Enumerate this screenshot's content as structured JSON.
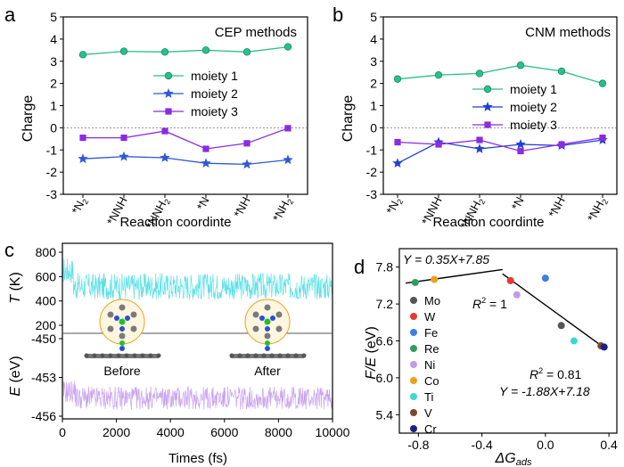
{
  "chart_data": [
    {
      "panel": "a",
      "type": "line",
      "title": "CEP methods",
      "xlabel": "Reaction coordinte",
      "ylabel": "Charge",
      "ylim": [
        -3,
        5
      ],
      "yticks": [
        "5",
        "4",
        "3",
        "2",
        "1",
        "0",
        "-1",
        "-2",
        "-3"
      ],
      "categories": [
        "*N2",
        "*NNH",
        "*NNH2",
        "*N",
        "*NH",
        "*NH2"
      ],
      "category_labels": [
        {
          "base": "*N",
          "sub": "2"
        },
        {
          "base": "*NNH",
          "sub": ""
        },
        {
          "base": "*NNH",
          "sub": "2"
        },
        {
          "base": "*N",
          "sub": ""
        },
        {
          "base": "*NH",
          "sub": ""
        },
        {
          "base": "*NH",
          "sub": "2"
        }
      ],
      "legend_position": "center-right",
      "series": [
        {
          "name": "moiety 1",
          "color": "#2bbf8a",
          "marker": "circle",
          "values": [
            3.3,
            3.45,
            3.42,
            3.5,
            3.42,
            3.65
          ]
        },
        {
          "name": "moiety 2",
          "color": "#2f59d6",
          "marker": "star",
          "values": [
            -1.4,
            -1.3,
            -1.35,
            -1.6,
            -1.65,
            -1.45
          ]
        },
        {
          "name": "moiety 3",
          "color": "#8a2be2",
          "marker": "square",
          "values": [
            -0.45,
            -0.45,
            -0.15,
            -0.95,
            -0.7,
            -0.02
          ]
        }
      ]
    },
    {
      "panel": "b",
      "type": "line",
      "title": "CNM methods",
      "xlabel": "Reaction coordinte",
      "ylabel": "Charge",
      "ylim": [
        -3,
        5
      ],
      "yticks": [
        "5",
        "4",
        "3",
        "2",
        "1",
        "0",
        "-1",
        "-2",
        "-3"
      ],
      "categories": [
        "*N2",
        "*NNH",
        "*NNH2",
        "*N",
        "*NH",
        "*NH2"
      ],
      "category_labels": [
        {
          "base": "*N",
          "sub": "2"
        },
        {
          "base": "*NNH",
          "sub": ""
        },
        {
          "base": "*NNH",
          "sub": "2"
        },
        {
          "base": "*N",
          "sub": ""
        },
        {
          "base": "*NH",
          "sub": ""
        },
        {
          "base": "*NH",
          "sub": "2"
        }
      ],
      "legend_position": "center-right",
      "series": [
        {
          "name": "moiety 1",
          "color": "#2bbf8a",
          "marker": "circle",
          "values": [
            2.2,
            2.38,
            2.45,
            2.82,
            2.55,
            2.0
          ]
        },
        {
          "name": "moiety 2",
          "color": "#1f3fd6",
          "marker": "star",
          "values": [
            -1.6,
            -0.65,
            -0.95,
            -0.75,
            -0.8,
            -0.55
          ]
        },
        {
          "name": "moiety 3",
          "color": "#8a2be2",
          "marker": "square",
          "values": [
            -0.65,
            -0.75,
            -0.55,
            -1.05,
            -0.75,
            -0.45
          ]
        }
      ]
    },
    {
      "panel": "c",
      "type": "line",
      "xlabel": "Times (fs)",
      "xlim": [
        0,
        10000
      ],
      "xticks": [
        "0",
        "2000",
        "4000",
        "6000",
        "8000",
        "10000"
      ],
      "top": {
        "ylabel_var": "T",
        "ylabel_unit": " (K)",
        "ylim": [
          200,
          800
        ],
        "yticks": [
          "800",
          "600",
          "400",
          "200"
        ],
        "mean": 520,
        "amplitude": 110,
        "color": "#5fe0e6"
      },
      "bottom": {
        "ylabel_var": "E",
        "ylabel_unit": " (eV)",
        "ylim": [
          -456,
          -450
        ],
        "yticks": [
          "-450",
          "-453",
          "-456"
        ],
        "mean": -454.6,
        "amplitude": 0.9,
        "color": "#c9a3ef"
      },
      "annotations": [
        "Before",
        "After"
      ]
    },
    {
      "panel": "d",
      "type": "scatter",
      "xlabel_var": "ΔG",
      "xlabel_sub": "ads",
      "ylabel_var": "F/E",
      "ylabel_unit": " (eV)",
      "xlim": [
        -0.92,
        0.45
      ],
      "ylim": [
        5.1,
        8.1
      ],
      "xticks": [
        "-0.8",
        "-0.4",
        "0.0",
        "0.4"
      ],
      "yticks": [
        "7.8",
        "7.2",
        "6.6",
        "6.0",
        "5.4"
      ],
      "points": [
        {
          "name": "Mo",
          "color": "#555555",
          "x": 0.1,
          "y": 6.85
        },
        {
          "name": "W",
          "color": "#e53935",
          "x": -0.22,
          "y": 7.58
        },
        {
          "name": "Fe",
          "color": "#3f7fe0",
          "x": 0.0,
          "y": 7.62
        },
        {
          "name": "Re",
          "color": "#2e9e5a",
          "x": -0.82,
          "y": 7.55
        },
        {
          "name": "Ni",
          "color": "#c39be6",
          "x": -0.18,
          "y": 7.35
        },
        {
          "name": "Co",
          "color": "#e8a21a",
          "x": -0.7,
          "y": 7.6
        },
        {
          "name": "Ti",
          "color": "#3fd6d6",
          "x": 0.18,
          "y": 6.6
        },
        {
          "name": "V",
          "color": "#7b4a2e",
          "x": 0.35,
          "y": 6.52
        },
        {
          "name": "Cr",
          "color": "#1a237e",
          "x": 0.37,
          "y": 6.5
        }
      ],
      "fit_lines": [
        {
          "label": "Y = 0.35X+7.85",
          "r2_var": "R",
          "r2_sup": "2",
          "r2_value": " = 1",
          "x": [
            -0.88,
            -0.27
          ],
          "y": [
            7.54,
            7.76
          ]
        },
        {
          "label": "Y = -1.88X+7.18",
          "r2_var": "R",
          "r2_sup": "2",
          "r2_value": " = 0.81",
          "x": [
            -0.27,
            0.38
          ],
          "y": [
            7.69,
            6.47
          ]
        }
      ]
    }
  ],
  "panel_labels": [
    "a",
    "b",
    "c",
    "d"
  ]
}
